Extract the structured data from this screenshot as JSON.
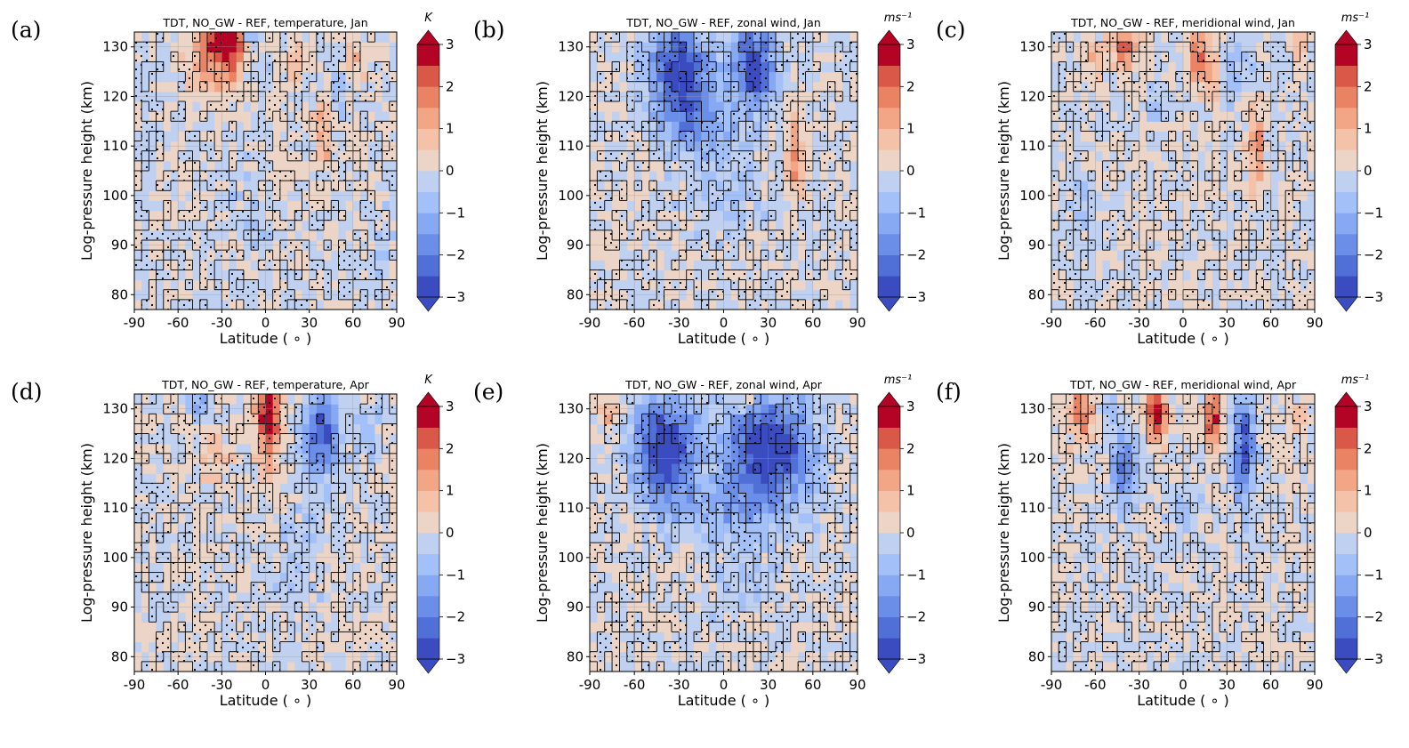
{
  "figure": {
    "colormap": {
      "name": "coolwarm",
      "levels": [
        -3,
        -2.5,
        -2,
        -1.5,
        -1,
        -0.5,
        0,
        0.5,
        1,
        1.5,
        2,
        2.5,
        3
      ],
      "colors": [
        "#3b4cc0",
        "#5170d7",
        "#6b8ee8",
        "#87a9f4",
        "#a3c0f8",
        "#bfd0f0",
        "#dcdde1",
        "#ecd4c6",
        "#f4c2a8",
        "#f3a686",
        "#ea8264",
        "#d95848",
        "#b40426"
      ],
      "under_color": "#3b4cc0",
      "over_color": "#b40426",
      "cbar_ticks": [
        "3",
        "2",
        "1",
        "0",
        "−1",
        "−2",
        "−3"
      ]
    },
    "axes_common": {
      "xlabel": "Latitude ( ∘ )",
      "ylabel": "Log-pressure height (km)",
      "xticks": [
        "-90",
        "-60",
        "-30",
        "0",
        "30",
        "60",
        "90"
      ],
      "yticks": [
        "80",
        "90",
        "100",
        "110",
        "120",
        "130"
      ]
    }
  },
  "chart_data": [
    {
      "panel": "(a)",
      "type": "heatmap",
      "title": "TDT, NO_GW - REF,  temperature, Jan",
      "unit": "K",
      "x": "latitude (deg)",
      "y": "log-pressure height (km)",
      "xlim": [
        -90,
        90
      ],
      "ylim": [
        77,
        133
      ],
      "zlim": [
        -3,
        3
      ],
      "grid": true,
      "stippling": "significant regions outlined and dotted",
      "features": [
        {
          "lat": -30,
          "z": 131,
          "value": 3.0,
          "dlat": 14,
          "dz": 3
        },
        {
          "lat": -38,
          "z": 126,
          "value": 1.3,
          "dlat": 14,
          "dz": 6
        },
        {
          "lat": -22,
          "z": 126,
          "value": 1.2,
          "dlat": 8,
          "dz": 5
        },
        {
          "lat": -10,
          "z": 132,
          "value": -1.5,
          "dlat": 4,
          "dz": 2
        },
        {
          "lat": 0,
          "z": 126,
          "value": -0.5,
          "dlat": 6,
          "dz": 5
        },
        {
          "lat": 20,
          "z": 127,
          "value": 1.0,
          "dlat": 4,
          "dz": 5
        },
        {
          "lat": 40,
          "z": 113,
          "value": 1.3,
          "dlat": 6,
          "dz": 7
        },
        {
          "lat": 60,
          "z": 127,
          "value": 1.0,
          "dlat": 6,
          "dz": 5
        },
        {
          "lat": 50,
          "z": 122,
          "value": -0.6,
          "dlat": 10,
          "dz": 6
        },
        {
          "lat": -10,
          "z": 95,
          "value": -0.4,
          "dlat": 15,
          "dz": 12
        },
        {
          "lat": 80,
          "z": 90,
          "value": -0.4,
          "dlat": 8,
          "dz": 10
        }
      ]
    },
    {
      "panel": "(b)",
      "type": "heatmap",
      "title": "TDT, NO_GW - REF,  zonal wind, Jan",
      "unit": "ms⁻¹",
      "x": "latitude (deg)",
      "y": "log-pressure height (km)",
      "xlim": [
        -90,
        90
      ],
      "ylim": [
        77,
        133
      ],
      "zlim": [
        -3,
        3
      ],
      "grid": true,
      "stippling": "significant regions outlined and dotted",
      "features": [
        {
          "lat": -30,
          "z": 126,
          "value": -3.0,
          "dlat": 20,
          "dz": 8
        },
        {
          "lat": 20,
          "z": 126,
          "value": -3.0,
          "dlat": 14,
          "dz": 8
        },
        {
          "lat": -20,
          "z": 115,
          "value": -1.5,
          "dlat": 25,
          "dz": 7
        },
        {
          "lat": 48,
          "z": 108,
          "value": 1.6,
          "dlat": 6,
          "dz": 8
        },
        {
          "lat": 0,
          "z": 100,
          "value": -0.5,
          "dlat": 30,
          "dz": 10
        }
      ]
    },
    {
      "panel": "(c)",
      "type": "heatmap",
      "title": "TDT, NO_GW - REF, meridional wind, Jan",
      "unit": "ms⁻¹",
      "x": "latitude (deg)",
      "y": "log-pressure height (km)",
      "xlim": [
        -90,
        90
      ],
      "ylim": [
        77,
        133
      ],
      "zlim": [
        -3,
        3
      ],
      "grid": true,
      "stippling": "significant regions outlined and dotted",
      "features": [
        {
          "lat": -40,
          "z": 130,
          "value": 2.2,
          "dlat": 8,
          "dz": 4
        },
        {
          "lat": -60,
          "z": 128,
          "value": 1.0,
          "dlat": 8,
          "dz": 4
        },
        {
          "lat": 10,
          "z": 128,
          "value": 2.5,
          "dlat": 5,
          "dz": 5
        },
        {
          "lat": 20,
          "z": 126,
          "value": 1.4,
          "dlat": 4,
          "dz": 8
        },
        {
          "lat": 50,
          "z": 109,
          "value": 1.6,
          "dlat": 6,
          "dz": 8
        },
        {
          "lat": 80,
          "z": 130,
          "value": 1.0,
          "dlat": 5,
          "dz": 4
        },
        {
          "lat": -20,
          "z": 118,
          "value": -0.6,
          "dlat": 6,
          "dz": 4
        },
        {
          "lat": 35,
          "z": 125,
          "value": -0.8,
          "dlat": 10,
          "dz": 6
        },
        {
          "lat": -70,
          "z": 100,
          "value": -0.4,
          "dlat": 10,
          "dz": 12
        }
      ]
    },
    {
      "panel": "(d)",
      "type": "heatmap",
      "title": "TDT, NO_GW - REF,  temperature, Apr",
      "unit": "K",
      "x": "latitude (deg)",
      "y": "log-pressure height (km)",
      "xlim": [
        -90,
        90
      ],
      "ylim": [
        77,
        133
      ],
      "zlim": [
        -3,
        3
      ],
      "grid": true,
      "stippling": "significant regions outlined and dotted",
      "features": [
        {
          "lat": 2,
          "z": 129,
          "value": 3.3,
          "dlat": 9,
          "dz": 5
        },
        {
          "lat": 2,
          "z": 119,
          "value": 1.3,
          "dlat": 7,
          "dz": 6
        },
        {
          "lat": 38,
          "z": 125,
          "value": -2.6,
          "dlat": 12,
          "dz": 8
        },
        {
          "lat": -45,
          "z": 131,
          "value": -1.5,
          "dlat": 6,
          "dz": 3
        },
        {
          "lat": -35,
          "z": 120,
          "value": 0.9,
          "dlat": 10,
          "dz": 5
        },
        {
          "lat": 70,
          "z": 125,
          "value": -0.6,
          "dlat": 10,
          "dz": 6
        },
        {
          "lat": 20,
          "z": 100,
          "value": -0.4,
          "dlat": 20,
          "dz": 15
        }
      ]
    },
    {
      "panel": "(e)",
      "type": "heatmap",
      "title": "TDT, NO_GW - REF,  zonal wind, Apr",
      "unit": "ms⁻¹",
      "x": "latitude (deg)",
      "y": "log-pressure height (km)",
      "xlim": [
        -90,
        90
      ],
      "ylim": [
        77,
        133
      ],
      "zlim": [
        -3,
        3
      ],
      "grid": true,
      "stippling": "significant regions outlined and dotted",
      "features": [
        {
          "lat": -40,
          "z": 122,
          "value": -3.3,
          "dlat": 20,
          "dz": 10
        },
        {
          "lat": 30,
          "z": 122,
          "value": -3.3,
          "dlat": 28,
          "dz": 10
        },
        {
          "lat": -75,
          "z": 129,
          "value": 1.0,
          "dlat": 6,
          "dz": 4
        },
        {
          "lat": 15,
          "z": 132,
          "value": 1.8,
          "dlat": 3,
          "dz": 2
        },
        {
          "lat": 0,
          "z": 110,
          "value": -1.0,
          "dlat": 40,
          "dz": 6
        },
        {
          "lat": 10,
          "z": 95,
          "value": -0.4,
          "dlat": 25,
          "dz": 10
        }
      ]
    },
    {
      "panel": "(f)",
      "type": "heatmap",
      "title": "TDT, NO_GW - REF, meridional wind, Apr",
      "unit": "ms⁻¹",
      "x": "latitude (deg)",
      "y": "log-pressure height (km)",
      "xlim": [
        -90,
        90
      ],
      "ylim": [
        77,
        133
      ],
      "zlim": [
        -3,
        3
      ],
      "grid": true,
      "stippling": "significant regions outlined and dotted",
      "features": [
        {
          "lat": -70,
          "z": 129,
          "value": 2.0,
          "dlat": 8,
          "dz": 5
        },
        {
          "lat": -18,
          "z": 129,
          "value": 3.0,
          "dlat": 7,
          "dz": 5
        },
        {
          "lat": 20,
          "z": 128,
          "value": 3.0,
          "dlat": 5,
          "dz": 6
        },
        {
          "lat": -40,
          "z": 118,
          "value": -2.0,
          "dlat": 8,
          "dz": 8
        },
        {
          "lat": 42,
          "z": 122,
          "value": -2.8,
          "dlat": 7,
          "dz": 10
        },
        {
          "lat": 80,
          "z": 128,
          "value": 0.8,
          "dlat": 6,
          "dz": 4
        },
        {
          "lat": -50,
          "z": 130,
          "value": -1.0,
          "dlat": 5,
          "dz": 3
        },
        {
          "lat": 0,
          "z": 110,
          "value": -0.4,
          "dlat": 20,
          "dz": 8
        }
      ]
    }
  ]
}
